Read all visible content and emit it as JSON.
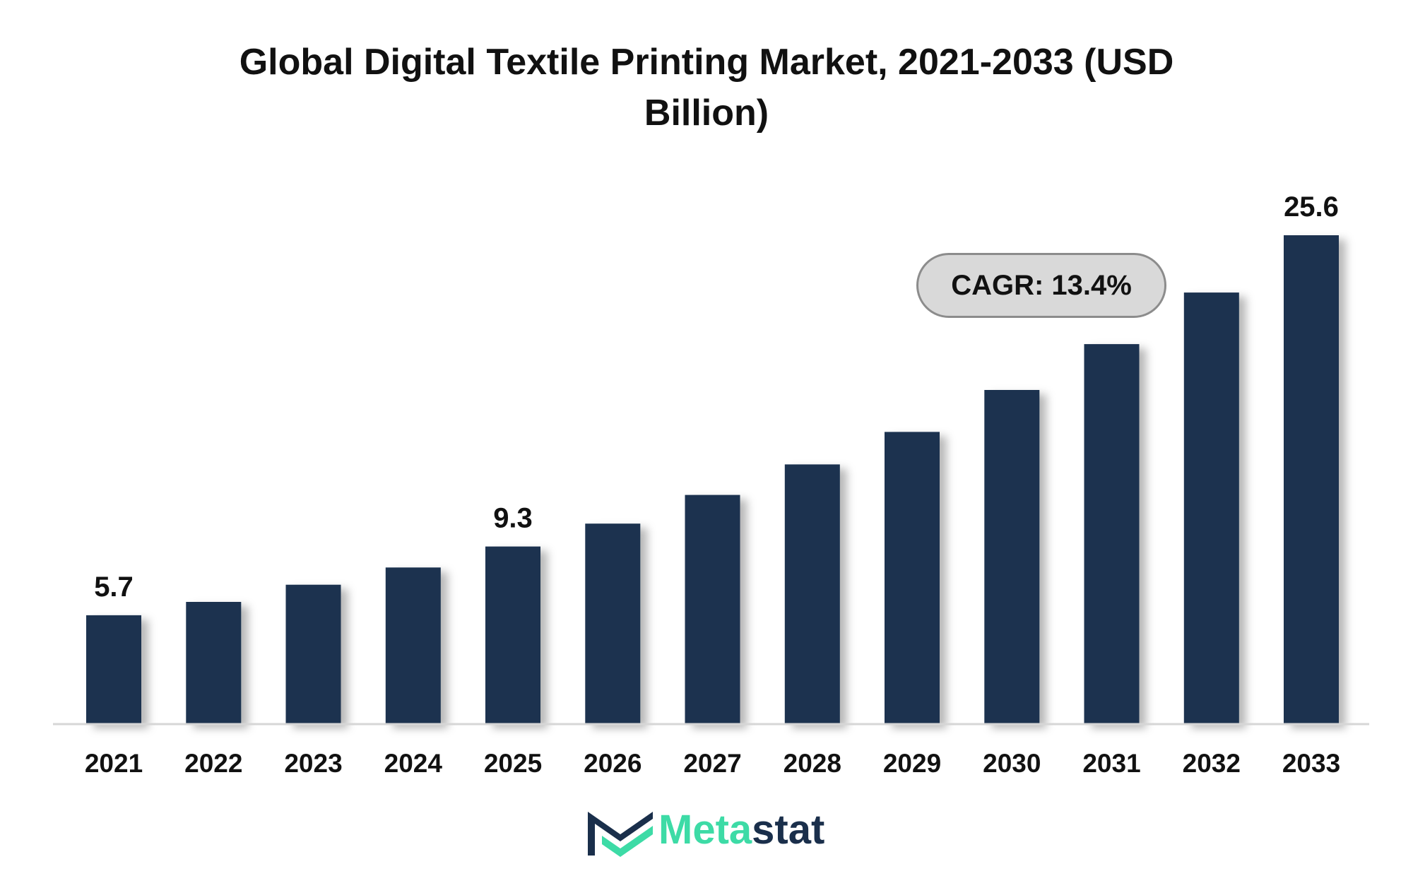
{
  "chart_data": {
    "type": "bar",
    "title": "Global Digital Textile Printing Market, 2021-2033 (USD Billion)",
    "xlabel": "",
    "ylabel": "",
    "categories": [
      "2021",
      "2022",
      "2023",
      "2024",
      "2025",
      "2026",
      "2027",
      "2028",
      "2029",
      "2030",
      "2031",
      "2032",
      "2033"
    ],
    "values": [
      5.7,
      6.4,
      7.3,
      8.2,
      9.3,
      10.5,
      12.0,
      13.6,
      15.3,
      17.5,
      19.9,
      22.6,
      25.6
    ],
    "data_labels": [
      {
        "category": "2021",
        "text": "5.7"
      },
      {
        "category": "2025",
        "text": "9.3"
      },
      {
        "category": "2033",
        "text": "25.6"
      }
    ],
    "ylim": [
      0,
      25.6
    ],
    "grid": false,
    "legend": "none",
    "bar_color": "#1a3150",
    "annotation": "CAGR: 13.4%"
  },
  "logo": {
    "text_part_1": "Meta",
    "text_part_2": "stat",
    "icon": "metastat-m-logo-icon",
    "colors": {
      "accent": "#3ddba6",
      "dark": "#1a2f4b"
    }
  }
}
